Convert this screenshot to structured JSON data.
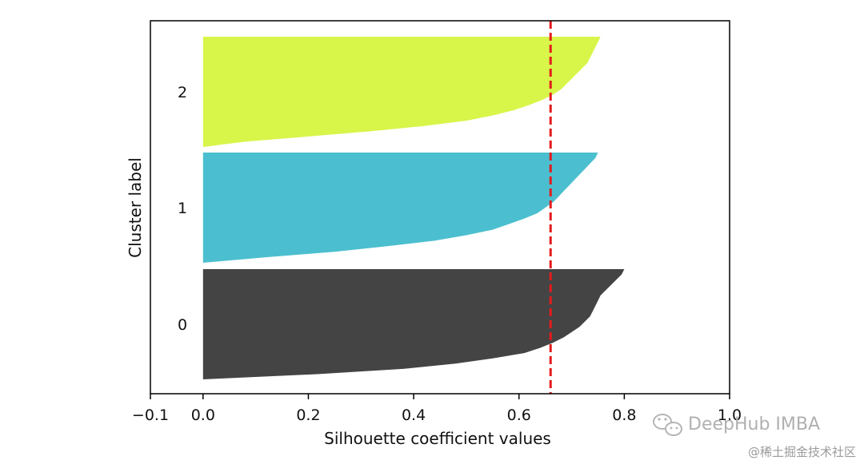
{
  "chart_data": {
    "type": "area",
    "xlabel": "Silhouette coefficient values",
    "ylabel": "Cluster label",
    "xlim": [
      -0.1,
      1.0
    ],
    "xticks": [
      -0.1,
      0.0,
      0.2,
      0.4,
      0.6,
      0.8,
      1.0
    ],
    "xtick_labels": [
      "−0.1",
      "0.0",
      "0.2",
      "0.4",
      "0.6",
      "0.8",
      "1.0"
    ],
    "average_silhouette": 0.66,
    "average_line_color": "#e41a1c",
    "series": [
      {
        "label": "0",
        "color": "#444444",
        "silhouette_sorted_desc": [
          0.8,
          0.795,
          0.785,
          0.775,
          0.765,
          0.755,
          0.75,
          0.745,
          0.74,
          0.735,
          0.725,
          0.715,
          0.7,
          0.685,
          0.665,
          0.64,
          0.61,
          0.55,
          0.48,
          0.38,
          0.22,
          0.0
        ]
      },
      {
        "label": "1",
        "color": "#4bbfcf",
        "silhouette_sorted_desc": [
          0.75,
          0.745,
          0.735,
          0.725,
          0.715,
          0.705,
          0.695,
          0.685,
          0.675,
          0.665,
          0.65,
          0.635,
          0.61,
          0.58,
          0.55,
          0.5,
          0.44,
          0.35,
          0.25,
          0.12,
          0.0
        ]
      },
      {
        "label": "2",
        "color": "#d8f54a",
        "silhouette_sorted_desc": [
          0.755,
          0.75,
          0.745,
          0.74,
          0.735,
          0.73,
          0.72,
          0.71,
          0.7,
          0.69,
          0.68,
          0.665,
          0.645,
          0.62,
          0.59,
          0.55,
          0.5,
          0.42,
          0.32,
          0.2,
          0.08,
          0.0
        ]
      }
    ]
  },
  "watermark": {
    "brand": "DeepHub IMBA",
    "site": "@稀土掘金技术社区",
    "icon": "wechat-icon"
  }
}
